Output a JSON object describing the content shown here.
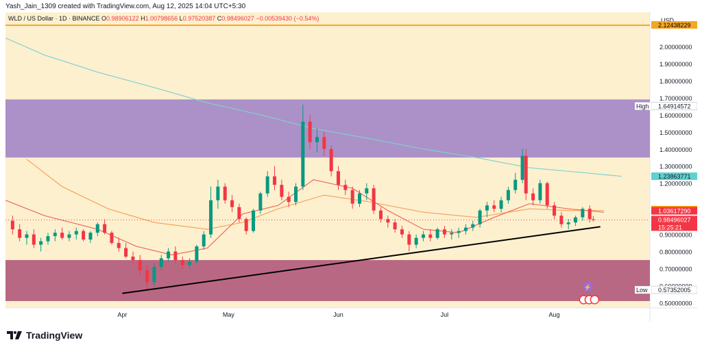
{
  "header": {
    "attribution": "Yash_Jain_1309 created with TradingView.com, Aug 12, 2025 14:04 UTC+5:30"
  },
  "legend": {
    "symbol": "WLD / US Dollar · 1D · BINANCE",
    "o_label": "O",
    "o_value": "0.98906122",
    "h_label": "H",
    "h_value": "1.00798656",
    "l_label": "L",
    "l_value": "0.97520387",
    "c_label": "C",
    "c_value": "0.98496027",
    "change": "−0.00539430 (−0.54%)",
    "up_color": "#089981",
    "down_color": "#f23645"
  },
  "currency_label": "USD",
  "footer": {
    "brand": "TradingView"
  },
  "chart_data": {
    "type": "candlestick",
    "y_range": [
      0.47,
      2.2
    ],
    "y_ticks": [
      {
        "value": 2.0,
        "label": "2.00000000"
      },
      {
        "value": 1.9,
        "label": "1.90000000"
      },
      {
        "value": 1.8,
        "label": "1.80000000"
      },
      {
        "value": 1.7,
        "label": "1.70000000"
      },
      {
        "value": 1.6,
        "label": "1.60000000"
      },
      {
        "value": 1.5,
        "label": "1.50000000"
      },
      {
        "value": 1.4,
        "label": "1.40000000"
      },
      {
        "value": 1.3,
        "label": "1.30000000"
      },
      {
        "value": 1.2,
        "label": "1.20000000"
      },
      {
        "value": 0.9,
        "label": "0.90000000"
      },
      {
        "value": 0.8,
        "label": "0.80000000"
      },
      {
        "value": 0.7,
        "label": "0.70000000"
      },
      {
        "value": 0.6,
        "label": "0.60000000"
      },
      {
        "value": 0.5,
        "label": "0.50000000"
      }
    ],
    "x_ticks": [
      {
        "date": "2025-04-01",
        "label": "Apr"
      },
      {
        "date": "2025-05-01",
        "label": "May"
      },
      {
        "date": "2025-06-01",
        "label": "Jun"
      },
      {
        "date": "2025-07-01",
        "label": "Jul"
      },
      {
        "date": "2025-08-01",
        "label": "Aug"
      }
    ],
    "x_range": [
      "2025-02-27",
      "2025-08-28"
    ],
    "zones": [
      {
        "from": 1.35,
        "to": 1.69,
        "color": "#a78bc6"
      },
      {
        "from": 0.51,
        "to": 0.75,
        "color": "#b5607e"
      }
    ],
    "hline": {
      "value": 2.12438229,
      "color": "#f5a623"
    },
    "trendline": {
      "points": [
        [
          "2025-04-01",
          0.555
        ],
        [
          "2025-08-14",
          0.945
        ]
      ],
      "color": "#000000"
    },
    "price_labels": [
      {
        "value": 2.12438229,
        "text": "2.12438229",
        "bg": "#f5a623",
        "fg": "#000000"
      },
      {
        "value": 1.64914572,
        "text": "1.64914572",
        "tag": "High",
        "bg": "#ffffff",
        "fg": "#131722"
      },
      {
        "value": 1.23863771,
        "text": "1.23863771",
        "bg": "#5fd2d0",
        "fg": "#131722"
      },
      {
        "value": 1.04290704,
        "text": "1.04290704",
        "bg": "#ff9800",
        "fg": "#131722"
      },
      {
        "value": 1.0361729,
        "text": "1.03617290",
        "bg": "#f23645",
        "fg": "#ffffff"
      },
      {
        "value": 0.98496027,
        "text": "0.98496027",
        "bg": "#f23645",
        "fg": "#ffffff",
        "sub": "15:25:21"
      },
      {
        "value": 0.57352005,
        "text": "0.57352005",
        "tag": "Low",
        "bg": "#ffffff",
        "fg": "#131722"
      }
    ],
    "ma_long": {
      "color": "#7fd1cf",
      "points": [
        [
          "2025-02-27",
          2.05
        ],
        [
          "2025-03-10",
          1.95
        ],
        [
          "2025-03-25",
          1.85
        ],
        [
          "2025-04-10",
          1.76
        ],
        [
          "2025-04-25",
          1.67
        ],
        [
          "2025-05-10",
          1.6
        ],
        [
          "2025-05-25",
          1.52
        ],
        [
          "2025-06-10",
          1.46
        ],
        [
          "2025-06-25",
          1.4
        ],
        [
          "2025-07-10",
          1.35
        ],
        [
          "2025-07-25",
          1.29
        ],
        [
          "2025-08-10",
          1.26
        ],
        [
          "2025-08-20",
          1.24
        ]
      ]
    },
    "ma_mid": {
      "color": "#f7a35c",
      "points": [
        [
          "2025-03-05",
          1.34
        ],
        [
          "2025-03-15",
          1.18
        ],
        [
          "2025-03-28",
          1.05
        ],
        [
          "2025-04-10",
          0.97
        ],
        [
          "2025-04-25",
          0.93
        ],
        [
          "2025-05-05",
          0.97
        ],
        [
          "2025-05-15",
          1.05
        ],
        [
          "2025-05-28",
          1.13
        ],
        [
          "2025-06-10",
          1.09
        ],
        [
          "2025-06-25",
          1.03
        ],
        [
          "2025-07-10",
          1.0
        ],
        [
          "2025-07-25",
          1.05
        ],
        [
          "2025-08-05",
          1.04
        ],
        [
          "2025-08-15",
          1.04
        ]
      ]
    },
    "ma_short": {
      "color": "#ef6a5a",
      "points": [
        [
          "2025-02-27",
          1.1
        ],
        [
          "2025-03-10",
          1.01
        ],
        [
          "2025-03-25",
          0.93
        ],
        [
          "2025-04-05",
          0.83
        ],
        [
          "2025-04-15",
          0.78
        ],
        [
          "2025-04-25",
          0.82
        ],
        [
          "2025-05-05",
          1.02
        ],
        [
          "2025-05-15",
          1.07
        ],
        [
          "2025-05-25",
          1.22
        ],
        [
          "2025-06-05",
          1.17
        ],
        [
          "2025-06-15",
          1.04
        ],
        [
          "2025-06-25",
          0.93
        ],
        [
          "2025-07-05",
          0.91
        ],
        [
          "2025-07-15",
          1.0
        ],
        [
          "2025-07-25",
          1.08
        ],
        [
          "2025-08-05",
          1.05
        ],
        [
          "2025-08-15",
          1.03
        ]
      ]
    },
    "candles_ohlc": [
      [
        "2025-03-01",
        0.98,
        1.01,
        0.9,
        0.93
      ],
      [
        "2025-03-03",
        0.93,
        0.96,
        0.86,
        0.88
      ],
      [
        "2025-03-05",
        0.88,
        0.92,
        0.84,
        0.9
      ],
      [
        "2025-03-07",
        0.9,
        0.93,
        0.82,
        0.84
      ],
      [
        "2025-03-09",
        0.84,
        0.88,
        0.8,
        0.86
      ],
      [
        "2025-03-11",
        0.86,
        0.91,
        0.84,
        0.89
      ],
      [
        "2025-03-13",
        0.89,
        0.93,
        0.86,
        0.91
      ],
      [
        "2025-03-15",
        0.91,
        0.94,
        0.87,
        0.88
      ],
      [
        "2025-03-17",
        0.88,
        0.92,
        0.86,
        0.9
      ],
      [
        "2025-03-19",
        0.9,
        0.94,
        0.87,
        0.92
      ],
      [
        "2025-03-21",
        0.92,
        0.93,
        0.86,
        0.87
      ],
      [
        "2025-03-23",
        0.87,
        0.92,
        0.85,
        0.91
      ],
      [
        "2025-03-25",
        0.91,
        0.97,
        0.89,
        0.96
      ],
      [
        "2025-03-27",
        0.96,
        0.99,
        0.9,
        0.91
      ],
      [
        "2025-03-29",
        0.91,
        0.92,
        0.84,
        0.85
      ],
      [
        "2025-03-31",
        0.85,
        0.88,
        0.8,
        0.82
      ],
      [
        "2025-04-02",
        0.82,
        0.85,
        0.76,
        0.77
      ],
      [
        "2025-04-04",
        0.77,
        0.8,
        0.72,
        0.75
      ],
      [
        "2025-04-06",
        0.75,
        0.78,
        0.66,
        0.69
      ],
      [
        "2025-04-08",
        0.69,
        0.72,
        0.57,
        0.62
      ],
      [
        "2025-04-10",
        0.62,
        0.73,
        0.6,
        0.71
      ],
      [
        "2025-04-12",
        0.71,
        0.78,
        0.69,
        0.76
      ],
      [
        "2025-04-14",
        0.76,
        0.82,
        0.74,
        0.8
      ],
      [
        "2025-04-16",
        0.8,
        0.83,
        0.73,
        0.75
      ],
      [
        "2025-04-18",
        0.75,
        0.77,
        0.7,
        0.72
      ],
      [
        "2025-04-20",
        0.72,
        0.76,
        0.7,
        0.74
      ],
      [
        "2025-04-22",
        0.74,
        0.84,
        0.73,
        0.83
      ],
      [
        "2025-04-24",
        0.83,
        0.92,
        0.81,
        0.9
      ],
      [
        "2025-04-26",
        0.9,
        1.18,
        0.88,
        1.1
      ],
      [
        "2025-04-28",
        1.1,
        1.22,
        1.05,
        1.18
      ],
      [
        "2025-04-30",
        1.18,
        1.2,
        1.08,
        1.1
      ],
      [
        "2025-05-02",
        1.1,
        1.13,
        1.03,
        1.06
      ],
      [
        "2025-05-04",
        1.06,
        1.08,
        0.97,
        0.99
      ],
      [
        "2025-05-06",
        0.99,
        1.0,
        0.9,
        0.92
      ],
      [
        "2025-05-08",
        0.92,
        1.05,
        0.91,
        1.04
      ],
      [
        "2025-05-10",
        1.04,
        1.15,
        1.02,
        1.14
      ],
      [
        "2025-05-12",
        1.14,
        1.27,
        1.12,
        1.24
      ],
      [
        "2025-05-14",
        1.24,
        1.3,
        1.16,
        1.19
      ],
      [
        "2025-05-16",
        1.19,
        1.22,
        1.1,
        1.12
      ],
      [
        "2025-05-18",
        1.12,
        1.15,
        1.06,
        1.09
      ],
      [
        "2025-05-20",
        1.09,
        1.2,
        1.07,
        1.18
      ],
      [
        "2025-05-22",
        1.18,
        1.66,
        1.16,
        1.56
      ],
      [
        "2025-05-24",
        1.56,
        1.6,
        1.4,
        1.44
      ],
      [
        "2025-05-26",
        1.44,
        1.52,
        1.38,
        1.47
      ],
      [
        "2025-05-28",
        1.47,
        1.5,
        1.36,
        1.4
      ],
      [
        "2025-05-30",
        1.4,
        1.42,
        1.24,
        1.27
      ],
      [
        "2025-06-01",
        1.27,
        1.3,
        1.16,
        1.19
      ],
      [
        "2025-06-03",
        1.19,
        1.22,
        1.13,
        1.16
      ],
      [
        "2025-06-05",
        1.16,
        1.18,
        1.05,
        1.08
      ],
      [
        "2025-06-07",
        1.08,
        1.16,
        1.06,
        1.14
      ],
      [
        "2025-06-09",
        1.14,
        1.2,
        1.1,
        1.17
      ],
      [
        "2025-06-11",
        1.17,
        1.19,
        1.02,
        1.04
      ],
      [
        "2025-06-13",
        1.04,
        1.06,
        0.97,
        0.99
      ],
      [
        "2025-06-15",
        0.99,
        1.01,
        0.94,
        0.97
      ],
      [
        "2025-06-17",
        0.97,
        0.99,
        0.91,
        0.93
      ],
      [
        "2025-06-19",
        0.93,
        0.95,
        0.88,
        0.9
      ],
      [
        "2025-06-21",
        0.9,
        0.92,
        0.8,
        0.84
      ],
      [
        "2025-06-23",
        0.84,
        0.9,
        0.82,
        0.88
      ],
      [
        "2025-06-25",
        0.88,
        0.92,
        0.86,
        0.9
      ],
      [
        "2025-06-27",
        0.9,
        0.93,
        0.86,
        0.88
      ],
      [
        "2025-06-29",
        0.88,
        0.94,
        0.87,
        0.93
      ],
      [
        "2025-07-01",
        0.93,
        0.95,
        0.88,
        0.9
      ],
      [
        "2025-07-03",
        0.9,
        0.93,
        0.87,
        0.91
      ],
      [
        "2025-07-05",
        0.91,
        0.94,
        0.88,
        0.92
      ],
      [
        "2025-07-07",
        0.92,
        0.96,
        0.9,
        0.94
      ],
      [
        "2025-07-09",
        0.94,
        0.98,
        0.92,
        0.96
      ],
      [
        "2025-07-11",
        0.96,
        1.05,
        0.94,
        1.04
      ],
      [
        "2025-07-13",
        1.04,
        1.09,
        1.0,
        1.07
      ],
      [
        "2025-07-15",
        1.07,
        1.1,
        1.03,
        1.05
      ],
      [
        "2025-07-17",
        1.05,
        1.12,
        1.03,
        1.1
      ],
      [
        "2025-07-19",
        1.1,
        1.18,
        1.08,
        1.16
      ],
      [
        "2025-07-21",
        1.16,
        1.26,
        1.14,
        1.22
      ],
      [
        "2025-07-23",
        1.22,
        1.4,
        1.2,
        1.36
      ],
      [
        "2025-07-24",
        1.36,
        1.4,
        1.1,
        1.14
      ],
      [
        "2025-07-26",
        1.14,
        1.17,
        1.07,
        1.1
      ],
      [
        "2025-07-28",
        1.1,
        1.22,
        1.08,
        1.2
      ],
      [
        "2025-07-30",
        1.2,
        1.21,
        1.05,
        1.07
      ],
      [
        "2025-08-01",
        1.07,
        1.09,
        0.99,
        1.01
      ],
      [
        "2025-08-03",
        1.01,
        1.03,
        0.94,
        0.96
      ],
      [
        "2025-08-05",
        0.96,
        0.99,
        0.93,
        0.97
      ],
      [
        "2025-08-07",
        0.97,
        1.01,
        0.95,
        1.0
      ],
      [
        "2025-08-09",
        1.0,
        1.06,
        0.98,
        1.05
      ],
      [
        "2025-08-11",
        1.05,
        1.07,
        0.97,
        0.99
      ],
      [
        "2025-08-12",
        0.989,
        1.008,
        0.975,
        0.985
      ]
    ]
  }
}
